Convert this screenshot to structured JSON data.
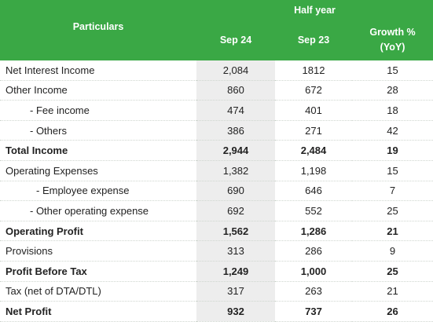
{
  "header": {
    "particulars": "Particulars",
    "group": "Half year",
    "columns": [
      "Sep 24",
      "Sep 23"
    ],
    "growth": [
      "Growth %",
      "(YoY)"
    ]
  },
  "table": {
    "rows": [
      {
        "cells": [
          "Net Interest Income",
          "2,084",
          "1812",
          "15"
        ]
      },
      {
        "cells": [
          "Other Income",
          "860",
          "672",
          "28"
        ]
      },
      {
        "cells": [
          "- Fee income",
          "474",
          "401",
          "18"
        ],
        "indent": 1
      },
      {
        "cells": [
          "- Others",
          "386",
          "271",
          "42"
        ],
        "indent": 1
      },
      {
        "cells": [
          "Total Income",
          "2,944",
          "2,484",
          "19"
        ],
        "bold": true
      },
      {
        "cells": [
          "Operating Expenses",
          "1,382",
          "1,198",
          "15"
        ]
      },
      {
        "cells": [
          "- Employee expense",
          "690",
          "646",
          "7"
        ],
        "indent": 2
      },
      {
        "cells": [
          "- Other operating expense",
          "692",
          "552",
          "25"
        ],
        "indent": 1
      },
      {
        "cells": [
          "Operating Profit",
          "1,562",
          "1,286",
          "21"
        ],
        "bold": true
      },
      {
        "cells": [
          "Provisions",
          "313",
          "286",
          "9"
        ]
      },
      {
        "cells": [
          "Profit Before Tax",
          "1,249",
          "1,000",
          "25"
        ],
        "bold": true
      },
      {
        "cells": [
          "Tax (net of DTA/DTL)",
          "317",
          "263",
          "21"
        ]
      },
      {
        "cells": [
          "Net Profit",
          "932",
          "737",
          "26"
        ],
        "bold": true
      }
    ]
  }
}
